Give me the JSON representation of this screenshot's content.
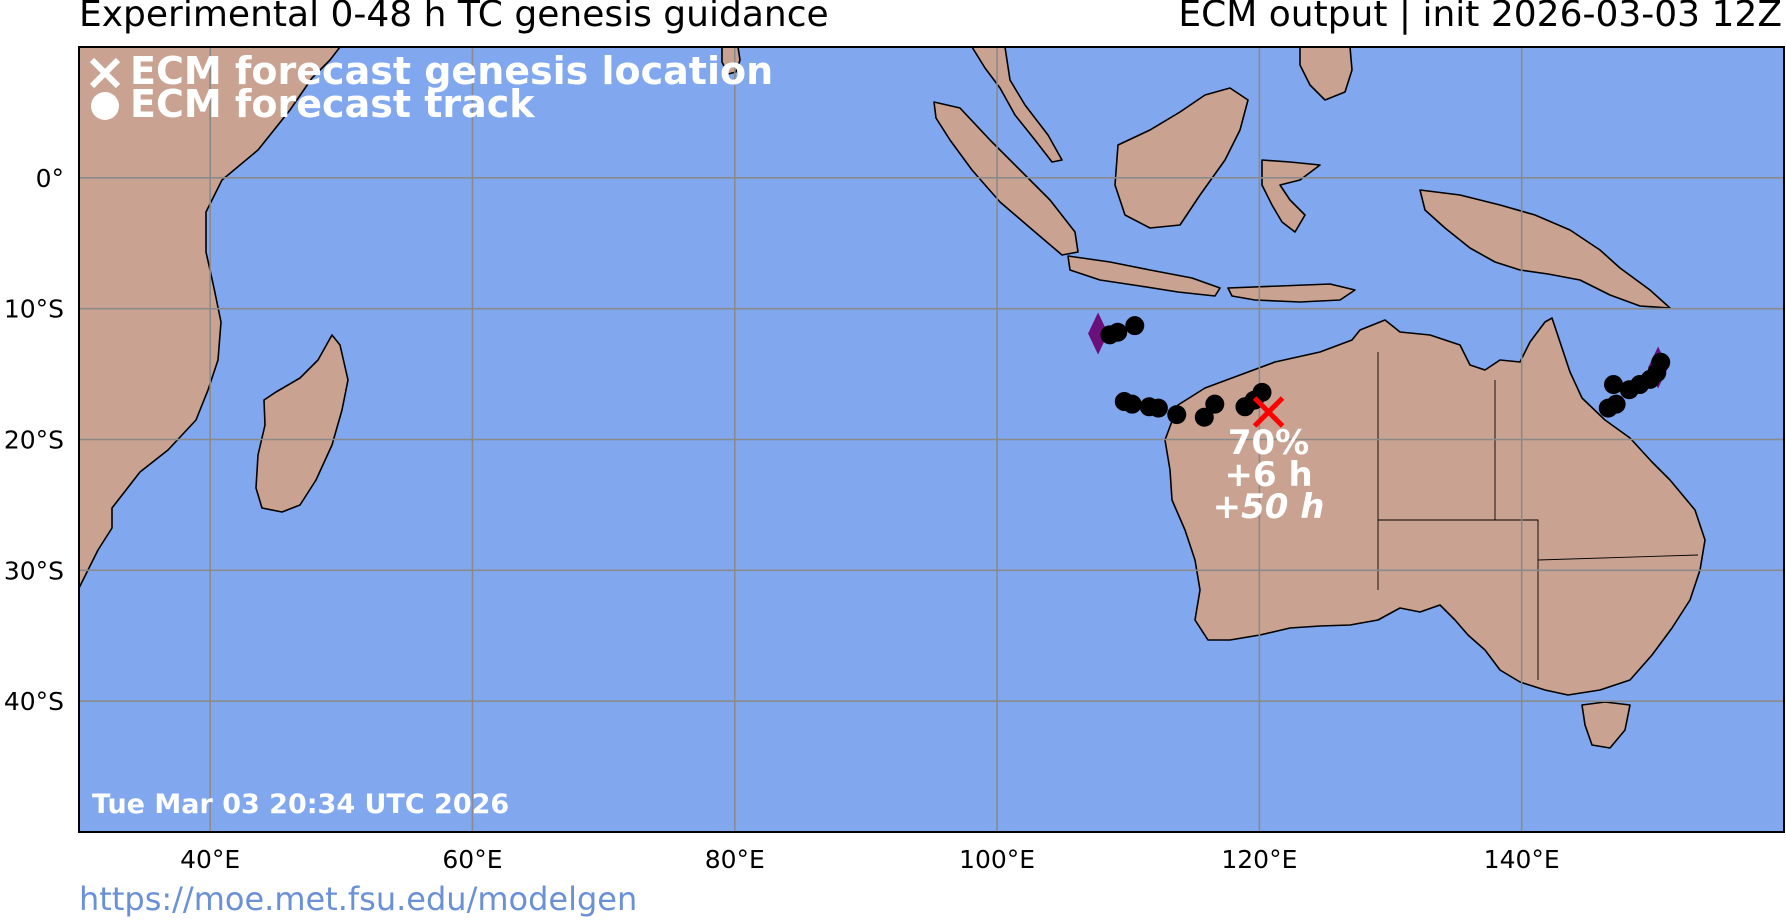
{
  "header": {
    "title_left": "Experimental 0-48 h TC genesis guidance",
    "title_right": "ECM output | init 2026-03-03 12Z"
  },
  "footer": {
    "url": "https://moe.met.fsu.edu/modelgen"
  },
  "legend": {
    "genesis_label": "ECM forecast genesis location",
    "track_label": "ECM forecast track"
  },
  "timestamp": "Tue Mar 03 20:34 UTC 2026",
  "colors": {
    "ocean": "#81a8ef",
    "land": "#caa291",
    "grid": "#8a8a8a",
    "genesis_marker": "#ff0000",
    "track_point": "#000000",
    "start_marker": "#6b0f7a",
    "url": "#6a91d8"
  },
  "map": {
    "lon_range": [
      30,
      160
    ],
    "lat_range": [
      -50,
      10
    ],
    "lon_ticks": [
      {
        "value": 40,
        "label": "40°E"
      },
      {
        "value": 60,
        "label": "60°E"
      },
      {
        "value": 80,
        "label": "80°E"
      },
      {
        "value": 100,
        "label": "100°E"
      },
      {
        "value": 120,
        "label": "120°E"
      },
      {
        "value": 140,
        "label": "140°E"
      }
    ],
    "lat_ticks": [
      {
        "value": 0,
        "label": "0°"
      },
      {
        "value": -10,
        "label": "10°S"
      },
      {
        "value": -20,
        "label": "20°S"
      },
      {
        "value": -30,
        "label": "30°S"
      },
      {
        "value": -40,
        "label": "40°S"
      }
    ]
  },
  "genesis": {
    "lon": 120.7,
    "lat": -17.9,
    "probability": "70%",
    "lead_time": "+6 h",
    "duration": "+50 h"
  },
  "tracks": [
    {
      "start": {
        "lon": 107.7,
        "lat": -11.9
      },
      "points": [
        [
          108.6,
          -12.0
        ],
        [
          109.2,
          -11.8
        ],
        [
          110.5,
          -11.3
        ]
      ]
    },
    {
      "start": null,
      "points": [
        [
          109.7,
          -17.1
        ],
        [
          110.3,
          -17.3
        ],
        [
          111.6,
          -17.5
        ],
        [
          112.3,
          -17.6
        ],
        [
          113.7,
          -18.1
        ],
        [
          115.8,
          -18.3
        ],
        [
          116.6,
          -17.3
        ],
        [
          118.9,
          -17.5
        ],
        [
          119.6,
          -17.0
        ],
        [
          120.2,
          -16.4
        ]
      ]
    },
    {
      "start": {
        "lon": 150.4,
        "lat": -14.5
      },
      "points": [
        [
          146.6,
          -17.6
        ],
        [
          147.2,
          -17.3
        ],
        [
          147.0,
          -15.8
        ],
        [
          148.2,
          -16.2
        ],
        [
          149.0,
          -15.8
        ],
        [
          149.8,
          -15.4
        ],
        [
          150.3,
          -14.9
        ],
        [
          150.6,
          -14.1
        ]
      ]
    }
  ]
}
